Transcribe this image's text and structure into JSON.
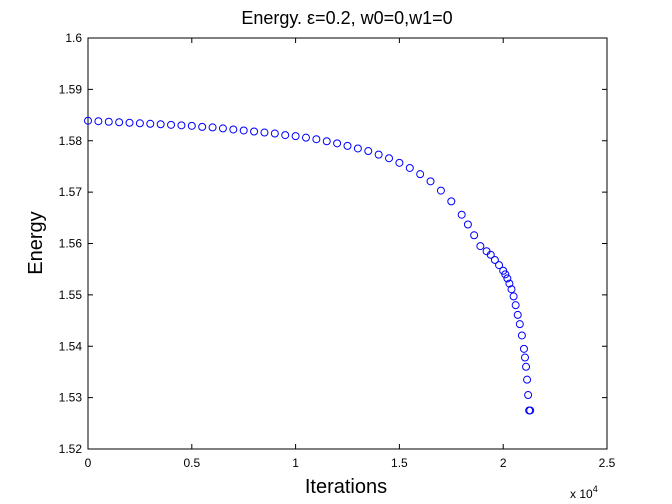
{
  "chart_data": {
    "type": "scatter",
    "title": "Energy.   ε=0.2, w0=0,w1=0",
    "xlabel": "Iterations",
    "ylabel": "Energy",
    "x_scale_label": "x 10",
    "x_scale_exponent": "4",
    "xlim": [
      0,
      2.5
    ],
    "ylim": [
      1.52,
      1.6
    ],
    "xticks": [
      "0",
      "0.5",
      "1",
      "1.5",
      "2",
      "2.5"
    ],
    "yticks": [
      "1.52",
      "1.53",
      "1.54",
      "1.55",
      "1.56",
      "1.57",
      "1.58",
      "1.59",
      "1.6"
    ],
    "marker": "circle-open",
    "grid": false,
    "x_units": "x 10^4 iterations",
    "x": [
      0.0,
      0.05,
      0.1,
      0.15,
      0.2,
      0.25,
      0.3,
      0.35,
      0.4,
      0.45,
      0.5,
      0.55,
      0.6,
      0.65,
      0.7,
      0.75,
      0.8,
      0.85,
      0.9,
      0.95,
      1.0,
      1.05,
      1.1,
      1.15,
      1.2,
      1.25,
      1.3,
      1.35,
      1.4,
      1.45,
      1.5,
      1.55,
      1.6,
      1.65,
      1.7,
      1.75,
      1.8,
      1.83,
      1.86,
      1.89,
      1.92,
      1.94,
      1.96,
      1.98,
      2.0,
      2.01,
      2.02,
      2.03,
      2.04,
      2.05,
      2.06,
      2.07,
      2.08,
      2.09,
      2.1,
      2.105,
      2.11,
      2.115,
      2.12,
      2.125,
      2.13
    ],
    "y": [
      1.5839,
      1.5838,
      1.5837,
      1.5836,
      1.5835,
      1.5834,
      1.5833,
      1.5832,
      1.5831,
      1.583,
      1.5829,
      1.5827,
      1.5826,
      1.5824,
      1.5822,
      1.582,
      1.5818,
      1.5816,
      1.5814,
      1.5811,
      1.5809,
      1.5806,
      1.5803,
      1.5799,
      1.5795,
      1.579,
      1.5785,
      1.578,
      1.5773,
      1.5766,
      1.5757,
      1.5747,
      1.5735,
      1.5721,
      1.5703,
      1.5682,
      1.5656,
      1.5637,
      1.5616,
      1.5595,
      1.5585,
      1.5578,
      1.5568,
      1.5558,
      1.5547,
      1.554,
      1.5532,
      1.5522,
      1.5511,
      1.5497,
      1.548,
      1.5461,
      1.5443,
      1.5421,
      1.5395,
      1.5378,
      1.536,
      1.5335,
      1.5305,
      1.5275,
      1.5275
    ],
    "series_color": "#0000ff"
  }
}
